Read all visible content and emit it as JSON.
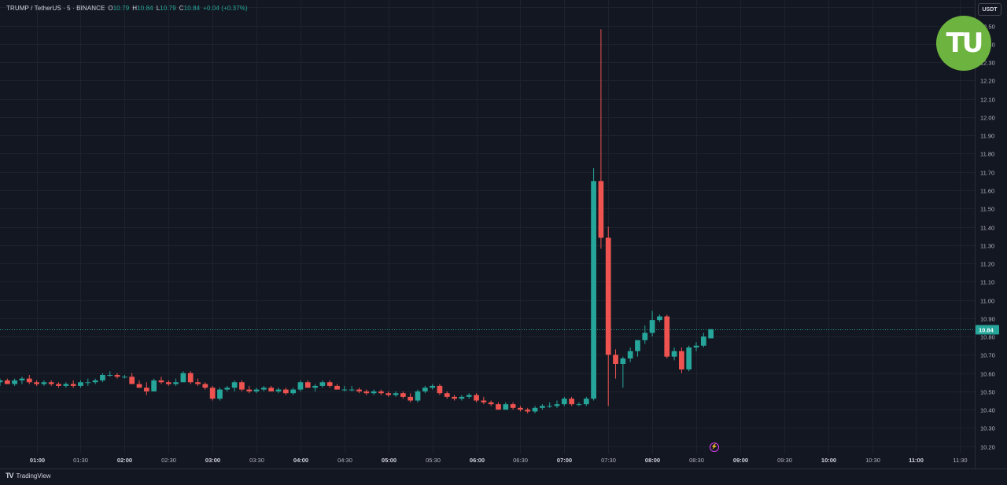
{
  "header": {
    "symbol": "TRUMP / TetherUS · 5 · BINANCE",
    "o_label": "O",
    "o_value": "10.79",
    "h_label": "H",
    "h_value": "10.84",
    "l_label": "L",
    "l_value": "10.79",
    "c_label": "C",
    "c_value": "10.84",
    "change": "+0.04 (+0.37%)"
  },
  "currency_button": "USDT",
  "logo_text": "TU",
  "footer": {
    "brand": "TradingView",
    "brand_icon": "tradingview-logo-icon"
  },
  "colors": {
    "bg": "#131722",
    "grid": "#1e222d",
    "up": "#26a69a",
    "down": "#ef5350",
    "axis_text": "#b2b5be",
    "logo": "#6db33f",
    "event_marker": "#e040fb"
  },
  "chart_data": {
    "type": "candlestick",
    "interval_minutes": 5,
    "start_time": "00:35",
    "last_price": 10.84,
    "last_price_label": "10.84",
    "ylim": [
      10.16,
      12.64
    ],
    "y_ticks": [
      "10.20",
      "10.30",
      "10.40",
      "10.50",
      "10.60",
      "10.70",
      "10.80",
      "10.90",
      "11.00",
      "11.10",
      "11.20",
      "11.30",
      "11.40",
      "11.50",
      "11.60",
      "11.70",
      "11.80",
      "11.90",
      "12.00",
      "12.10",
      "12.20",
      "12.30",
      "12.40",
      "12.50",
      "12.60"
    ],
    "xlim": [
      "00:35",
      "11:40"
    ],
    "x_ticks": [
      {
        "t": "01:00",
        "bold": true
      },
      {
        "t": "01:30",
        "bold": false
      },
      {
        "t": "02:00",
        "bold": true
      },
      {
        "t": "02:30",
        "bold": false
      },
      {
        "t": "03:00",
        "bold": true
      },
      {
        "t": "03:30",
        "bold": false
      },
      {
        "t": "04:00",
        "bold": true
      },
      {
        "t": "04:30",
        "bold": false
      },
      {
        "t": "05:00",
        "bold": true
      },
      {
        "t": "05:30",
        "bold": false
      },
      {
        "t": "06:00",
        "bold": true
      },
      {
        "t": "06:30",
        "bold": false
      },
      {
        "t": "07:00",
        "bold": true
      },
      {
        "t": "07:30",
        "bold": false
      },
      {
        "t": "08:00",
        "bold": true
      },
      {
        "t": "08:30",
        "bold": false
      },
      {
        "t": "09:00",
        "bold": true
      },
      {
        "t": "09:30",
        "bold": false
      },
      {
        "t": "10:00",
        "bold": true
      },
      {
        "t": "10:30",
        "bold": false
      },
      {
        "t": "11:00",
        "bold": true
      },
      {
        "t": "11:30",
        "bold": false
      }
    ],
    "grid": true,
    "ohlc": [
      [
        10.55,
        10.57,
        10.53,
        10.56
      ],
      [
        10.56,
        10.57,
        10.54,
        10.54
      ],
      [
        10.54,
        10.57,
        10.53,
        10.56
      ],
      [
        10.56,
        10.58,
        10.54,
        10.57
      ],
      [
        10.57,
        10.59,
        10.54,
        10.55
      ],
      [
        10.55,
        10.56,
        10.53,
        10.54
      ],
      [
        10.54,
        10.56,
        10.53,
        10.55
      ],
      [
        10.55,
        10.56,
        10.53,
        10.54
      ],
      [
        10.54,
        10.55,
        10.52,
        10.53
      ],
      [
        10.53,
        10.55,
        10.52,
        10.54
      ],
      [
        10.54,
        10.56,
        10.52,
        10.53
      ],
      [
        10.53,
        10.56,
        10.52,
        10.55
      ],
      [
        10.55,
        10.57,
        10.53,
        10.55
      ],
      [
        10.55,
        10.57,
        10.54,
        10.56
      ],
      [
        10.56,
        10.6,
        10.55,
        10.59
      ],
      [
        10.59,
        10.61,
        10.58,
        10.59
      ],
      [
        10.59,
        10.6,
        10.57,
        10.58
      ],
      [
        10.58,
        10.59,
        10.57,
        10.58
      ],
      [
        10.58,
        10.6,
        10.55,
        10.54
      ],
      [
        10.54,
        10.56,
        10.52,
        10.52
      ],
      [
        10.52,
        10.55,
        10.48,
        10.5
      ],
      [
        10.5,
        10.57,
        10.5,
        10.56
      ],
      [
        10.56,
        10.58,
        10.54,
        10.55
      ],
      [
        10.55,
        10.56,
        10.53,
        10.54
      ],
      [
        10.54,
        10.57,
        10.53,
        10.55
      ],
      [
        10.55,
        10.61,
        10.55,
        10.6
      ],
      [
        10.6,
        10.61,
        10.54,
        10.55
      ],
      [
        10.55,
        10.57,
        10.53,
        10.54
      ],
      [
        10.54,
        10.55,
        10.51,
        10.52
      ],
      [
        10.52,
        10.53,
        10.45,
        10.46
      ],
      [
        10.46,
        10.52,
        10.45,
        10.51
      ],
      [
        10.51,
        10.53,
        10.5,
        10.52
      ],
      [
        10.52,
        10.56,
        10.5,
        10.55
      ],
      [
        10.55,
        10.56,
        10.5,
        10.51
      ],
      [
        10.51,
        10.53,
        10.49,
        10.5
      ],
      [
        10.5,
        10.52,
        10.49,
        10.51
      ],
      [
        10.51,
        10.53,
        10.5,
        10.52
      ],
      [
        10.52,
        10.53,
        10.5,
        10.5
      ],
      [
        10.5,
        10.52,
        10.49,
        10.51
      ],
      [
        10.51,
        10.52,
        10.48,
        10.49
      ],
      [
        10.49,
        10.52,
        10.48,
        10.51
      ],
      [
        10.51,
        10.56,
        10.5,
        10.55
      ],
      [
        10.55,
        10.56,
        10.52,
        10.52
      ],
      [
        10.52,
        10.54,
        10.5,
        10.53
      ],
      [
        10.53,
        10.56,
        10.52,
        10.55
      ],
      [
        10.55,
        10.56,
        10.52,
        10.53
      ],
      [
        10.53,
        10.54,
        10.51,
        10.51
      ],
      [
        10.51,
        10.53,
        10.5,
        10.51
      ],
      [
        10.51,
        10.53,
        10.5,
        10.51
      ],
      [
        10.51,
        10.52,
        10.49,
        10.5
      ],
      [
        10.5,
        10.51,
        10.48,
        10.49
      ],
      [
        10.49,
        10.51,
        10.48,
        10.5
      ],
      [
        10.5,
        10.51,
        10.48,
        10.49
      ],
      [
        10.49,
        10.5,
        10.47,
        10.48
      ],
      [
        10.48,
        10.5,
        10.47,
        10.49
      ],
      [
        10.49,
        10.5,
        10.46,
        10.47
      ],
      [
        10.47,
        10.49,
        10.44,
        10.45
      ],
      [
        10.45,
        10.51,
        10.44,
        10.5
      ],
      [
        10.5,
        10.53,
        10.49,
        10.52
      ],
      [
        10.52,
        10.54,
        10.51,
        10.53
      ],
      [
        10.53,
        10.54,
        10.48,
        10.49
      ],
      [
        10.49,
        10.5,
        10.46,
        10.47
      ],
      [
        10.47,
        10.48,
        10.45,
        10.46
      ],
      [
        10.46,
        10.48,
        10.45,
        10.47
      ],
      [
        10.47,
        10.49,
        10.46,
        10.48
      ],
      [
        10.48,
        10.49,
        10.44,
        10.45
      ],
      [
        10.45,
        10.47,
        10.43,
        10.44
      ],
      [
        10.44,
        10.45,
        10.42,
        10.43
      ],
      [
        10.43,
        10.44,
        10.4,
        10.4
      ],
      [
        10.4,
        10.44,
        10.4,
        10.43
      ],
      [
        10.43,
        10.44,
        10.4,
        10.41
      ],
      [
        10.41,
        10.42,
        10.39,
        10.4
      ],
      [
        10.4,
        10.41,
        10.38,
        10.39
      ],
      [
        10.39,
        10.42,
        10.38,
        10.41
      ],
      [
        10.41,
        10.43,
        10.4,
        10.42
      ],
      [
        10.42,
        10.44,
        10.41,
        10.42
      ],
      [
        10.42,
        10.45,
        10.41,
        10.43
      ],
      [
        10.43,
        10.47,
        10.42,
        10.46
      ],
      [
        10.46,
        10.47,
        10.42,
        10.43
      ],
      [
        10.43,
        10.44,
        10.42,
        10.43
      ],
      [
        10.43,
        10.47,
        10.42,
        10.46
      ],
      [
        10.46,
        11.72,
        10.45,
        11.65
      ],
      [
        11.65,
        12.48,
        11.28,
        11.34
      ],
      [
        11.34,
        11.4,
        10.42,
        10.7
      ],
      [
        10.7,
        10.73,
        10.57,
        10.65
      ],
      [
        10.65,
        10.69,
        10.52,
        10.68
      ],
      [
        10.68,
        10.74,
        10.66,
        10.72
      ],
      [
        10.72,
        10.78,
        10.69,
        10.78
      ],
      [
        10.78,
        10.86,
        10.76,
        10.82
      ],
      [
        10.82,
        10.94,
        10.8,
        10.89
      ],
      [
        10.89,
        10.92,
        10.88,
        10.91
      ],
      [
        10.91,
        10.92,
        10.68,
        10.69
      ],
      [
        10.69,
        10.74,
        10.67,
        10.72
      ],
      [
        10.72,
        10.74,
        10.6,
        10.62
      ],
      [
        10.62,
        10.75,
        10.61,
        10.74
      ],
      [
        10.74,
        10.77,
        10.72,
        10.75
      ],
      [
        10.75,
        10.82,
        10.74,
        10.8
      ],
      [
        10.79,
        10.84,
        10.79,
        10.84
      ]
    ]
  }
}
